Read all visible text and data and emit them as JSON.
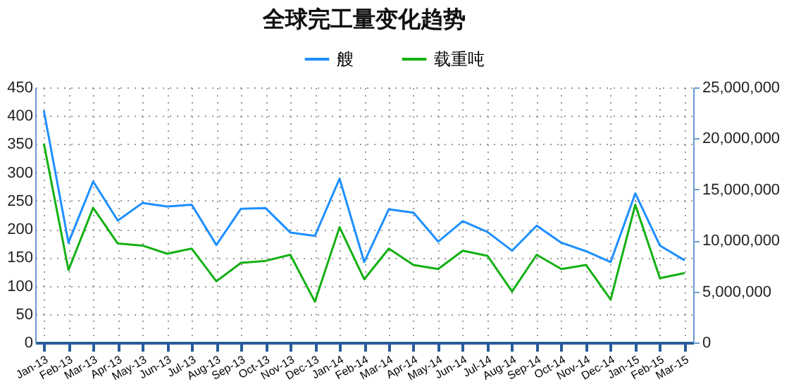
{
  "chart_data": {
    "type": "line",
    "title": "全球完工量变化趋势",
    "categories": [
      "Jan-13",
      "Feb-13",
      "Mar-13",
      "Apr-13",
      "May-13",
      "Jun-13",
      "Jul-13",
      "Aug-13",
      "Sep-13",
      "Oct-13",
      "Nov-13",
      "Dec-13",
      "Jan-14",
      "Feb-14",
      "Mar-14",
      "Apr-14",
      "May-14",
      "Jun-14",
      "Jul-14",
      "Aug-14",
      "Sep-14",
      "Oct-14",
      "Nov-14",
      "Dec-14",
      "Jan-15",
      "Feb-15",
      "Mar-15"
    ],
    "series": [
      {
        "name": "艘",
        "color": "#1e8fff",
        "values": [
          409,
          176,
          284,
          215,
          246,
          240,
          243,
          172,
          236,
          237,
          194,
          188,
          289,
          142,
          235,
          229,
          178,
          214,
          195,
          162,
          206,
          176,
          161,
          142,
          263,
          171,
          145
        ]
      },
      {
        "name": "载重吨",
        "color": "#14b014",
        "axis": "y2",
        "values": [
          19500000,
          7100000,
          13200000,
          9700000,
          9500000,
          8700000,
          9200000,
          6000000,
          7800000,
          8000000,
          8600000,
          4000000,
          11300000,
          6200000,
          9200000,
          7600000,
          7200000,
          9000000,
          8500000,
          5000000,
          8600000,
          7200000,
          7600000,
          4200000,
          13500000,
          6300000,
          6800000
        ]
      }
    ],
    "ylim": [
      0,
      450
    ],
    "yticks": [
      0,
      50,
      100,
      150,
      200,
      250,
      300,
      350,
      400,
      450
    ],
    "y2lim": [
      0,
      25000000
    ],
    "y2ticks": [
      0,
      {
        "value": 5000000,
        "label": "5,000,000"
      },
      {
        "value": 10000000,
        "label": "10,000,000"
      },
      {
        "value": 15000000,
        "label": "15,000,000"
      },
      {
        "value": 20000000,
        "label": "20,000,000"
      },
      {
        "value": 25000000,
        "label": "25,000,000"
      }
    ],
    "grid": true,
    "legend": "top"
  }
}
